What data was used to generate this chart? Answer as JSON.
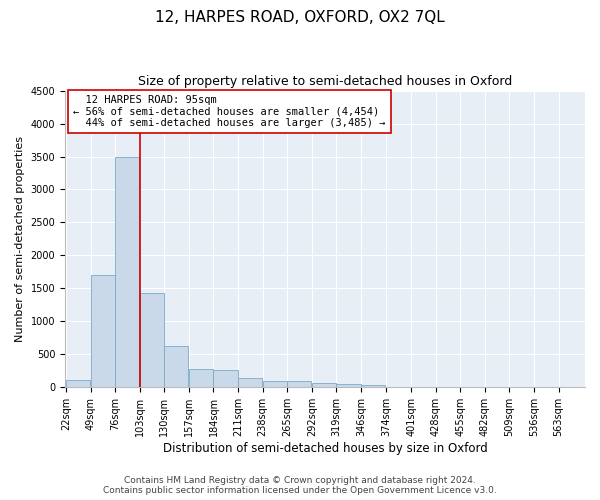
{
  "title": "12, HARPES ROAD, OXFORD, OX2 7QL",
  "subtitle": "Size of property relative to semi-detached houses in Oxford",
  "xlabel": "Distribution of semi-detached houses by size in Oxford",
  "ylabel": "Number of semi-detached properties",
  "property_label": "12 HARPES ROAD: 95sqm",
  "pct_smaller": 56,
  "pct_larger": 44,
  "n_smaller": 4454,
  "n_larger": 3485,
  "bar_color": "#c9d9ea",
  "bar_edge_color": "#7baac8",
  "vline_color": "#cc0000",
  "categories": [
    "22sqm",
    "49sqm",
    "76sqm",
    "103sqm",
    "130sqm",
    "157sqm",
    "184sqm",
    "211sqm",
    "238sqm",
    "265sqm",
    "292sqm",
    "319sqm",
    "346sqm",
    "374sqm",
    "401sqm",
    "428sqm",
    "455sqm",
    "482sqm",
    "509sqm",
    "536sqm",
    "563sqm"
  ],
  "bin_starts": [
    22,
    49,
    76,
    103,
    130,
    157,
    184,
    211,
    238,
    265,
    292,
    319,
    346,
    374,
    401,
    428,
    455,
    482,
    509,
    536,
    563
  ],
  "bin_width": 27,
  "values": [
    110,
    1700,
    3500,
    1430,
    620,
    280,
    270,
    140,
    100,
    90,
    65,
    50,
    40,
    10,
    3,
    2,
    1,
    1,
    0,
    0,
    0
  ],
  "ylim": [
    0,
    4500
  ],
  "yticks": [
    0,
    500,
    1000,
    1500,
    2000,
    2500,
    3000,
    3500,
    4000,
    4500
  ],
  "annotation_box_color": "#ffffff",
  "annotation_box_edge": "#cc0000",
  "footer_line1": "Contains HM Land Registry data © Crown copyright and database right 2024.",
  "footer_line2": "Contains public sector information licensed under the Open Government Licence v3.0.",
  "background_color": "#ffffff",
  "plot_bg_color": "#e8eef6",
  "grid_color": "#ffffff",
  "title_fontsize": 11,
  "subtitle_fontsize": 9,
  "axis_label_fontsize": 8,
  "tick_fontsize": 7,
  "annotation_fontsize": 7.5,
  "footer_fontsize": 6.5
}
